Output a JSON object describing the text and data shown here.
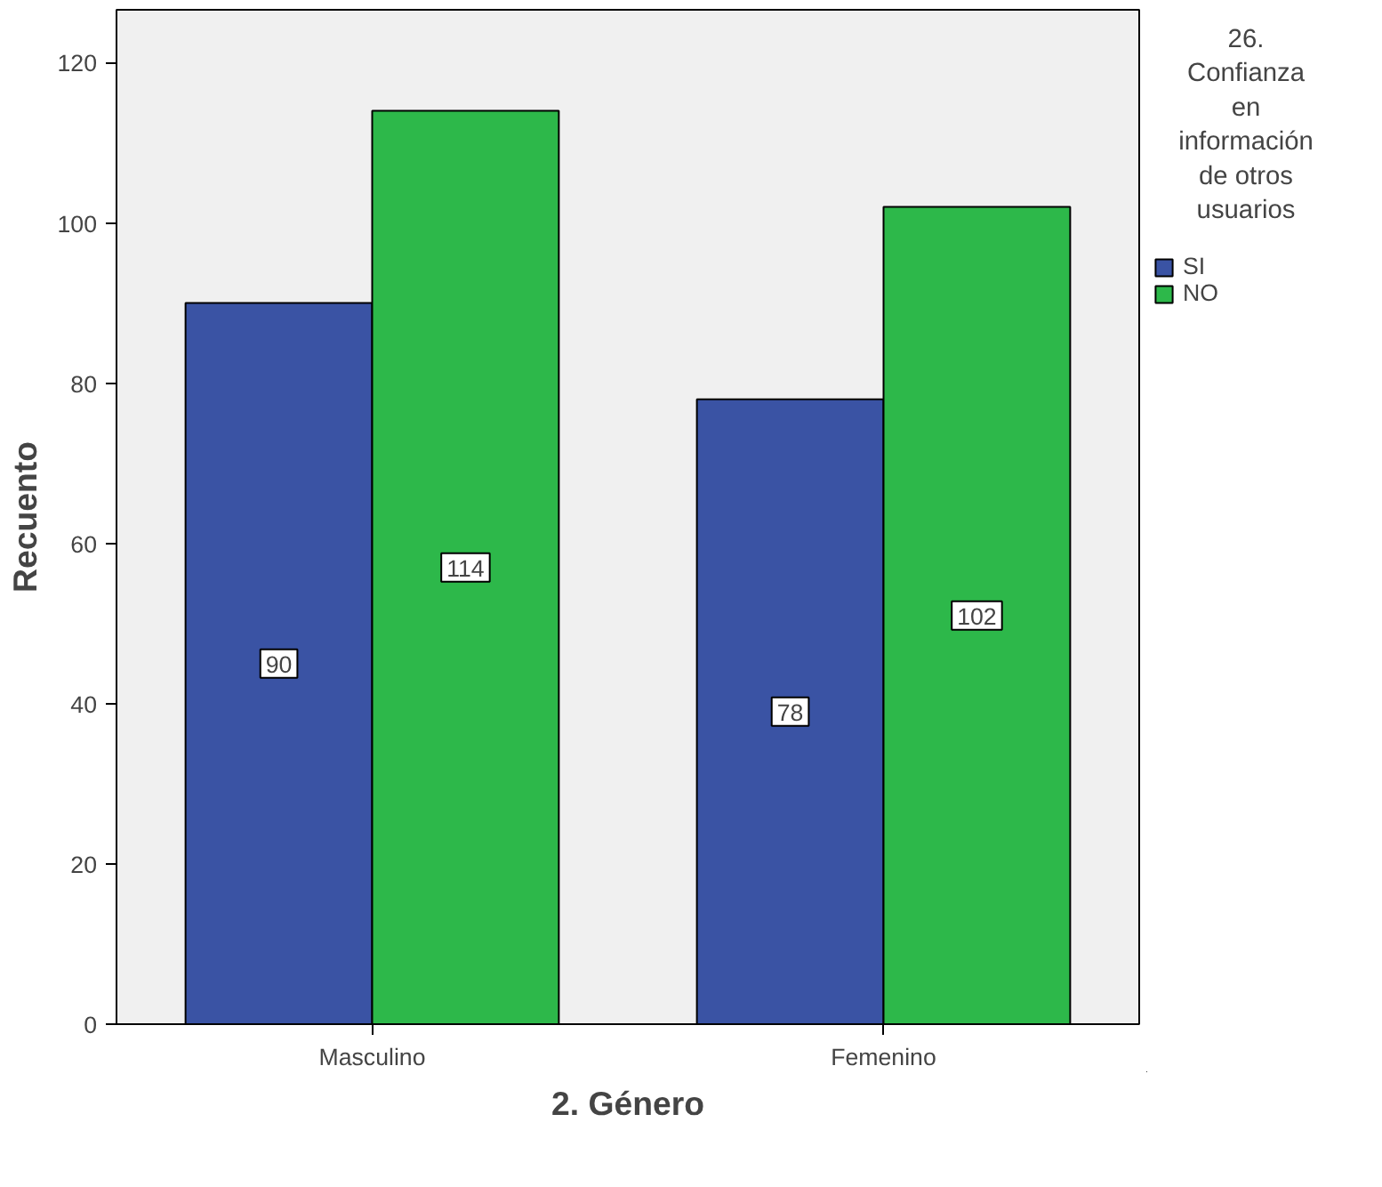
{
  "chart_data": {
    "type": "bar",
    "xlabel": "2. Género",
    "ylabel": "Recuento",
    "legend_title": "26. Confianza en información de otros usuarios",
    "categories": [
      "Masculino",
      "Femenino"
    ],
    "series": [
      {
        "name": "SI",
        "color": "#3a53a4",
        "values": [
          90,
          78
        ]
      },
      {
        "name": "NO",
        "color": "#2db84a",
        "values": [
          114,
          102
        ]
      }
    ],
    "ylim": [
      0,
      126.6
    ],
    "yticks": [
      0,
      20,
      40,
      60,
      80,
      100,
      120
    ],
    "grid": false,
    "legend": "right",
    "data_labels": true
  }
}
